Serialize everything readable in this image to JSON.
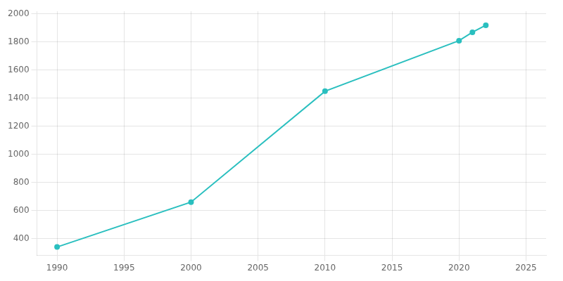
{
  "chart_data": {
    "type": "line",
    "x": [
      1990,
      2000,
      2010,
      2020,
      2021,
      2022
    ],
    "values": [
      340,
      660,
      1450,
      1810,
      1870,
      1920
    ],
    "color": "#2ABFBF",
    "marker": "circle",
    "xlim": [
      1988.5,
      2026.5
    ],
    "ylim": [
      280,
      2020
    ],
    "xticks": [
      1990,
      1995,
      2000,
      2005,
      2010,
      2015,
      2020,
      2025
    ],
    "yticks": [
      400,
      600,
      800,
      1000,
      1200,
      1400,
      1600,
      1800,
      2000
    ],
    "grid": true
  }
}
